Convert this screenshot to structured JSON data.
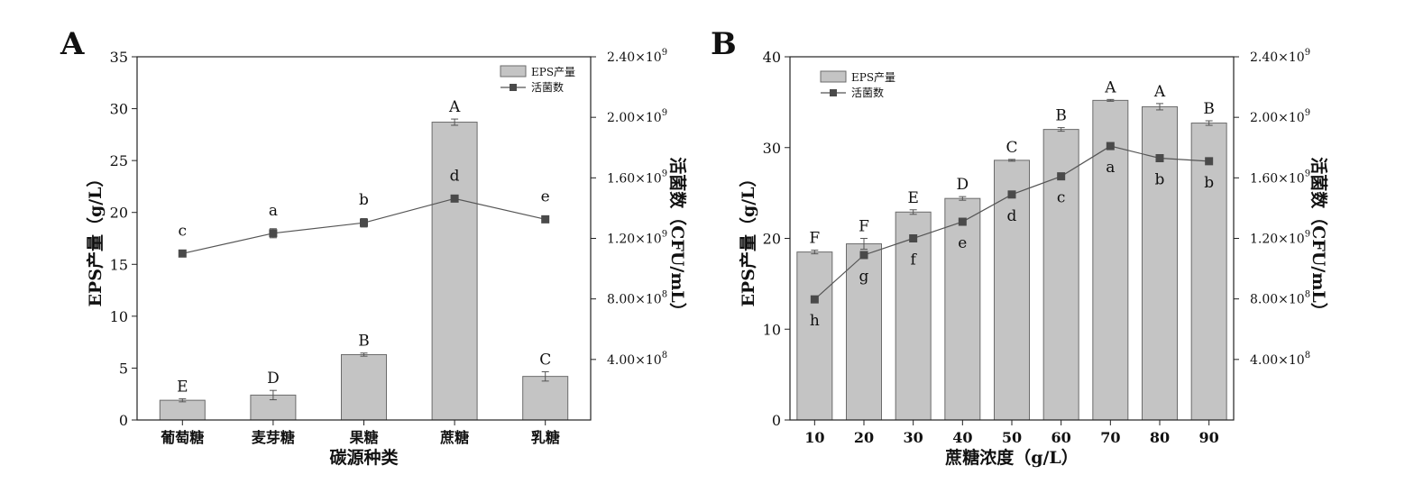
{
  "chart_data": [
    {
      "panel": "A",
      "type": "bar",
      "xlabel": "碳源种类",
      "ylabel": "EPS产量（g/L）",
      "y2label": "活菌数（CFU/mL）",
      "categories": [
        "葡萄糖",
        "麦芽糖",
        "果糖",
        "蔗糖",
        "乳糖"
      ],
      "ylim": [
        0,
        35
      ],
      "yticks": [
        "0",
        "5",
        "10",
        "15",
        "20",
        "25",
        "30",
        "35"
      ],
      "y2lim": [
        0,
        2400000000.0
      ],
      "y2ticks": [
        {
          "mant": "4.00×10",
          "exp": "8"
        },
        {
          "mant": "8.00×10",
          "exp": "8"
        },
        {
          "mant": "1.20×10",
          "exp": "9"
        },
        {
          "mant": "1.60×10",
          "exp": "9"
        },
        {
          "mant": "2.00×10",
          "exp": "9"
        },
        {
          "mant": "2.40×10",
          "exp": "9"
        }
      ],
      "legend": {
        "bar": "EPS产量",
        "line": "活菌数",
        "position": "top-right"
      },
      "bar_series": {
        "name": "EPS产量",
        "values": [
          1.9,
          2.4,
          6.3,
          28.7,
          4.2
        ],
        "errors": [
          0.15,
          0.45,
          0.15,
          0.3,
          0.45
        ],
        "labels": [
          "E",
          "D",
          "B",
          "A",
          "C"
        ]
      },
      "line_series": {
        "name": "活菌数",
        "values": [
          1100000000.0,
          1234000000.0,
          1303000000.0,
          1463000000.0,
          1326000000.0
        ],
        "errors": [
          20000000.0,
          30000000.0,
          28000000.0,
          12000000.0,
          8000000.0
        ],
        "labels": [
          "c",
          "a",
          "b",
          "d",
          "e"
        ],
        "label_pos": [
          "above",
          "above",
          "above",
          "above",
          "above"
        ]
      }
    },
    {
      "panel": "B",
      "type": "bar",
      "xlabel": "蔗糖浓度（g/L）",
      "ylabel": "EPS产量（g/L）",
      "y2label": "活菌数（CFU/mL）",
      "categories": [
        "10",
        "20",
        "30",
        "40",
        "50",
        "60",
        "70",
        "80",
        "90"
      ],
      "ylim": [
        0,
        40
      ],
      "yticks": [
        "0",
        "10",
        "20",
        "30",
        "40"
      ],
      "y2lim": [
        0,
        2400000000.0
      ],
      "y2ticks": [
        {
          "mant": "4.00×10",
          "exp": "8"
        },
        {
          "mant": "8.00×10",
          "exp": "8"
        },
        {
          "mant": "1.20×10",
          "exp": "9"
        },
        {
          "mant": "1.60×10",
          "exp": "9"
        },
        {
          "mant": "2.00×10",
          "exp": "9"
        },
        {
          "mant": "2.40×10",
          "exp": "9"
        }
      ],
      "legend": {
        "bar": "EPS产量",
        "line": "活菌数",
        "position": "top-left"
      },
      "bar_series": {
        "name": "EPS产量",
        "values": [
          18.5,
          19.4,
          22.9,
          24.4,
          28.6,
          32.0,
          35.2,
          34.5,
          32.7
        ],
        "errors": [
          0.2,
          0.6,
          0.25,
          0.2,
          0.1,
          0.2,
          0.1,
          0.35,
          0.25
        ],
        "labels": [
          "F",
          "F",
          "E",
          "D",
          "C",
          "B",
          "A",
          "A",
          "B"
        ]
      },
      "line_series": {
        "name": "活菌数",
        "values": [
          797000000.0,
          1090000000.0,
          1200000000.0,
          1310000000.0,
          1490000000.0,
          1610000000.0,
          1810000000.0,
          1730000000.0,
          1710000000.0
        ],
        "labels": [
          "h",
          "g",
          "f",
          "e",
          "d",
          "c",
          "a",
          "b",
          "b"
        ],
        "label_pos": [
          "below",
          "below",
          "below",
          "below",
          "below",
          "below",
          "below",
          "below",
          "below"
        ]
      }
    }
  ]
}
